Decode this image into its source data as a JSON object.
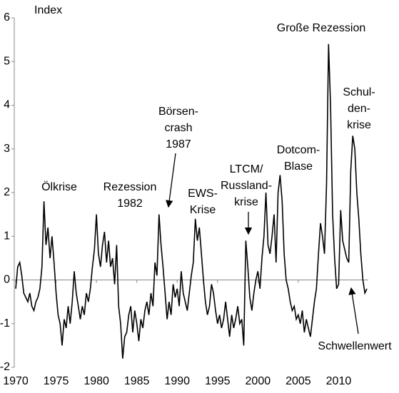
{
  "chart_data": {
    "type": "line",
    "y_axis_label": "Index",
    "xlim": [
      1970,
      2015
    ],
    "ylim": [
      -2,
      6
    ],
    "xticks": [
      1970,
      1975,
      1980,
      1985,
      1990,
      1995,
      2000,
      2005,
      2010
    ],
    "yticks": [
      -2,
      -1,
      0,
      1,
      2,
      3,
      4,
      5,
      6
    ],
    "annotations": [
      {
        "lines": [
          "Ölkrise"
        ]
      },
      {
        "lines": [
          "Rezession",
          "1982"
        ]
      },
      {
        "lines": [
          "Börsen-",
          "crash",
          "1987"
        ]
      },
      {
        "lines": [
          "EWS-",
          "Krise"
        ]
      },
      {
        "lines": [
          "LTCM/",
          "Russland-",
          "krise"
        ]
      },
      {
        "lines": [
          "Dotcom-",
          "Blase"
        ]
      },
      {
        "lines": [
          "Große Rezession"
        ]
      },
      {
        "lines": [
          "Schul-",
          "den-",
          "krise"
        ]
      },
      {
        "lines": [
          "Schwellenwert"
        ]
      }
    ],
    "x": [
      1970,
      1970.25,
      1970.5,
      1970.75,
      1971,
      1971.25,
      1971.5,
      1971.75,
      1972,
      1972.25,
      1972.5,
      1972.75,
      1973,
      1973.25,
      1973.5,
      1973.75,
      1974,
      1974.25,
      1974.5,
      1974.75,
      1975,
      1975.25,
      1975.5,
      1975.75,
      1976,
      1976.25,
      1976.5,
      1976.75,
      1977,
      1977.25,
      1977.5,
      1977.75,
      1978,
      1978.25,
      1978.5,
      1978.75,
      1979,
      1979.25,
      1979.5,
      1979.75,
      1980,
      1980.25,
      1980.5,
      1980.75,
      1981,
      1981.25,
      1981.5,
      1981.75,
      1982,
      1982.25,
      1982.5,
      1982.75,
      1983,
      1983.25,
      1983.5,
      1983.75,
      1984,
      1984.25,
      1984.5,
      1984.75,
      1985,
      1985.25,
      1985.5,
      1985.75,
      1986,
      1986.25,
      1986.5,
      1986.75,
      1987,
      1987.25,
      1987.5,
      1987.75,
      1988,
      1988.25,
      1988.5,
      1988.75,
      1989,
      1989.25,
      1989.5,
      1989.75,
      1990,
      1990.25,
      1990.5,
      1990.75,
      1991,
      1991.25,
      1991.5,
      1991.75,
      1992,
      1992.25,
      1992.5,
      1992.75,
      1993,
      1993.25,
      1993.5,
      1993.75,
      1994,
      1994.25,
      1994.5,
      1994.75,
      1995,
      1995.25,
      1995.5,
      1995.75,
      1996,
      1996.25,
      1996.5,
      1996.75,
      1997,
      1997.25,
      1997.5,
      1997.75,
      1998,
      1998.25,
      1998.5,
      1998.75,
      1999,
      1999.25,
      1999.5,
      1999.75,
      2000,
      2000.25,
      2000.5,
      2000.75,
      2001,
      2001.25,
      2001.5,
      2001.75,
      2002,
      2002.25,
      2002.5,
      2002.75,
      2003,
      2003.25,
      2003.5,
      2003.75,
      2004,
      2004.25,
      2004.5,
      2004.75,
      2005,
      2005.25,
      2005.5,
      2005.75,
      2006,
      2006.25,
      2006.5,
      2006.75,
      2007,
      2007.25,
      2007.5,
      2007.75,
      2008,
      2008.25,
      2008.5,
      2008.75,
      2009,
      2009.25,
      2009.5,
      2009.75,
      2010,
      2010.25,
      2010.5,
      2010.75,
      2011,
      2011.25,
      2011.5,
      2011.75,
      2012,
      2012.25,
      2012.5,
      2012.75,
      2013,
      2013.25,
      2013.5
    ],
    "series": [
      {
        "color": "#000000",
        "values": [
          -0.2,
          0.3,
          0.4,
          0.1,
          -0.3,
          -0.4,
          -0.5,
          -0.3,
          -0.6,
          -0.7,
          -0.5,
          -0.4,
          -0.2,
          0.3,
          1.8,
          0.8,
          1.2,
          0.5,
          1.0,
          0.4,
          -0.3,
          -0.8,
          -1.0,
          -1.5,
          -0.9,
          -1.1,
          -0.6,
          -1.0,
          -0.5,
          0.2,
          -0.3,
          -0.6,
          -0.9,
          -0.6,
          -0.8,
          -0.3,
          -0.5,
          -0.2,
          0.3,
          0.7,
          1.5,
          0.6,
          0.3,
          0.8,
          1.1,
          0.4,
          0.9,
          0.3,
          0.5,
          -0.1,
          0.8,
          -0.6,
          -1.0,
          -1.8,
          -1.3,
          -1.2,
          -0.8,
          -0.6,
          -1.2,
          -0.7,
          -1.0,
          -1.4,
          -0.9,
          -1.1,
          -0.7,
          -0.5,
          -0.8,
          -0.3,
          -0.6,
          0.4,
          0.1,
          1.5,
          0.8,
          0.3,
          -0.3,
          -0.9,
          -0.5,
          -0.8,
          -0.1,
          -0.4,
          -0.2,
          -0.6,
          0.2,
          -0.3,
          -0.5,
          -0.7,
          -0.3,
          0.1,
          0.4,
          1.4,
          0.9,
          1.2,
          0.6,
          0.0,
          -0.5,
          -0.8,
          -0.6,
          -0.1,
          -0.3,
          -0.7,
          -1.0,
          -0.8,
          -1.1,
          -0.9,
          -0.5,
          -0.9,
          -1.3,
          -0.8,
          -1.1,
          -0.9,
          -0.6,
          -1.0,
          -0.9,
          -1.5,
          0.9,
          0.3,
          -0.4,
          -0.7,
          -0.3,
          0.0,
          0.2,
          -0.2,
          0.5,
          1.0,
          2.0,
          0.8,
          0.6,
          1.0,
          1.5,
          0.4,
          2.0,
          2.4,
          1.8,
          0.6,
          0.0,
          -0.2,
          -0.5,
          -0.7,
          -0.6,
          -0.9,
          -0.8,
          -1.0,
          -0.7,
          -1.2,
          -0.9,
          -1.1,
          -1.3,
          -0.9,
          -0.5,
          -0.2,
          0.6,
          1.3,
          1.0,
          0.6,
          2.2,
          5.4,
          4.0,
          1.5,
          0.5,
          -0.2,
          -0.1,
          1.6,
          0.9,
          0.7,
          0.5,
          0.4,
          2.5,
          3.3,
          3.0,
          2.0,
          1.4,
          0.6,
          0.0,
          -0.3,
          -0.2
        ]
      }
    ]
  }
}
